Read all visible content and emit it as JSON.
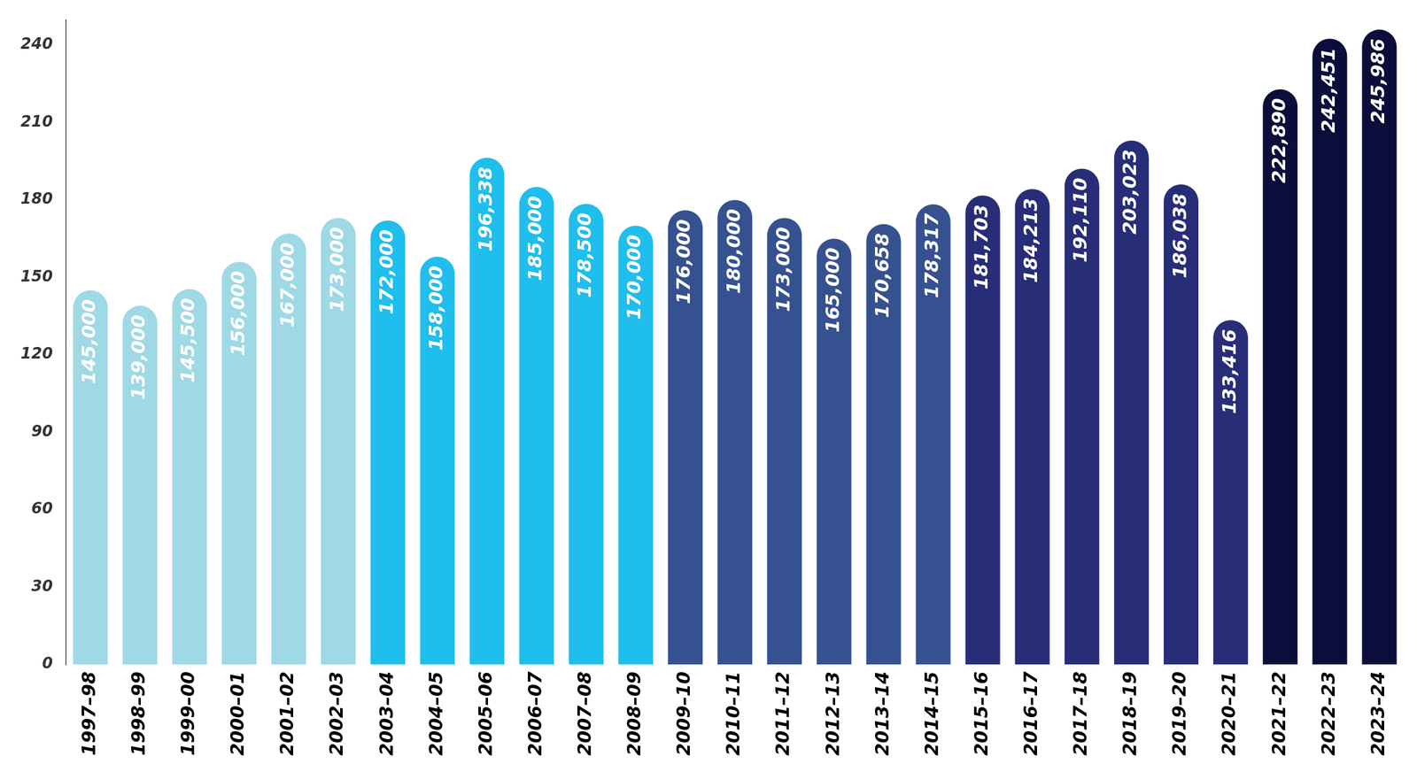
{
  "chart_data": {
    "type": "bar",
    "categories": [
      "1997–98",
      "1998–99",
      "1999–00",
      "2000–01",
      "2001–02",
      "2002–03",
      "2003–04",
      "2004–05",
      "2005–06",
      "2006–07",
      "2007–08",
      "2008–09",
      "2009–10",
      "2010–11",
      "2011–12",
      "2012–13",
      "2013–14",
      "2014–15",
      "2015–16",
      "2016–17",
      "2017–18",
      "2018–19",
      "2019–20",
      "2020–21",
      "2021–22",
      "2022–23",
      "2023–24"
    ],
    "values": [
      145,
      139,
      145.5,
      156,
      167,
      173,
      172,
      158,
      196.338,
      185,
      178.5,
      170,
      176,
      180,
      173,
      165,
      170.658,
      178.317,
      181.703,
      184.213,
      192.11,
      203.023,
      186.038,
      133.416,
      222.89,
      242.451,
      245.986
    ],
    "value_labels": [
      "145,000",
      "139,000",
      "145,500",
      "156,000",
      "167,000",
      "173,000",
      "172,000",
      "158,000",
      "196,338",
      "185,000",
      "178,500",
      "170,000",
      "176,000",
      "180,000",
      "173,000",
      "165,000",
      "170,658",
      "178,317",
      "181,703",
      "184,213",
      "192,110",
      "203,023",
      "186,038",
      "133,416",
      "222,890",
      "242,451",
      "245,986"
    ],
    "colors": [
      "#9fd9e6",
      "#9fd9e6",
      "#9fd9e6",
      "#9fd9e6",
      "#9fd9e6",
      "#9fd9e6",
      "#1fbeec",
      "#1fbeec",
      "#1fbeec",
      "#1fbeec",
      "#1fbeec",
      "#1fbeec",
      "#36518f",
      "#36518f",
      "#36518f",
      "#36518f",
      "#36518f",
      "#36518f",
      "#282d78",
      "#282d78",
      "#282d78",
      "#282d78",
      "#282d78",
      "#282d78",
      "#0b0d3a",
      "#0b0d3a",
      "#0b0d3a"
    ],
    "ylim": [
      0,
      250
    ],
    "yticks": [
      0,
      30,
      60,
      90,
      120,
      150,
      180,
      210,
      240
    ],
    "grid": false,
    "data_labels": true
  }
}
